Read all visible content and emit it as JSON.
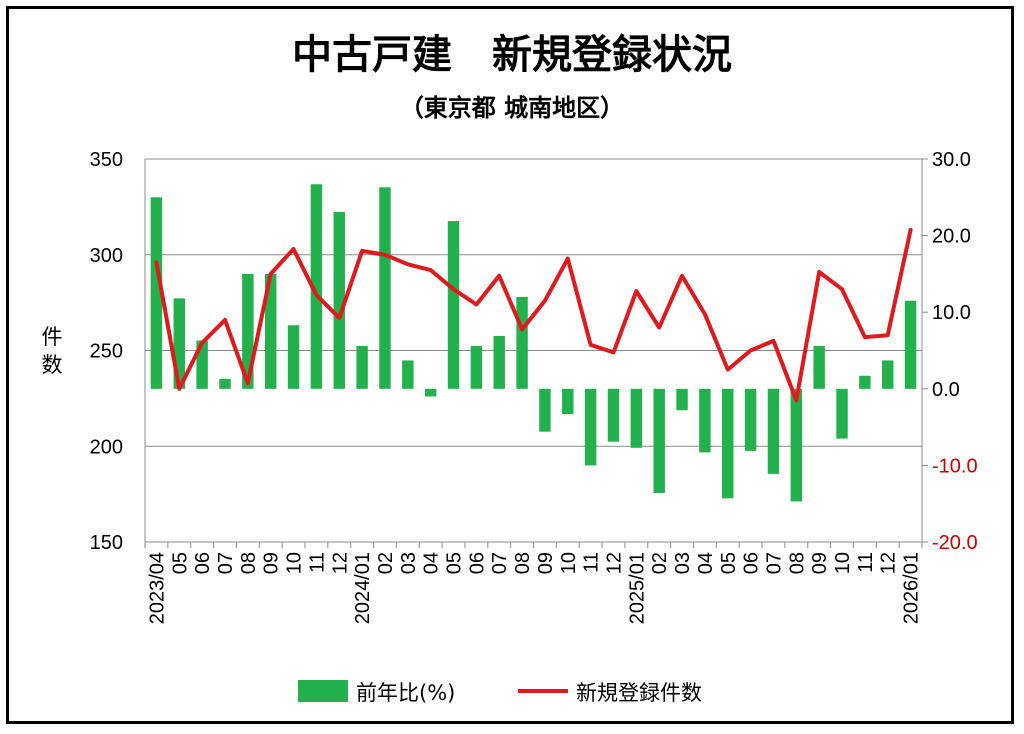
{
  "chart_data": {
    "type": "bar+line",
    "title": "中古戸建　新規登録状況",
    "subtitle": "（東京都 城南地区）",
    "ylabel": "件数",
    "ylabel_chars": [
      "件",
      "数"
    ],
    "categories": [
      "2023/04",
      "05",
      "06",
      "07",
      "08",
      "09",
      "10",
      "11",
      "12",
      "2024/01",
      "02",
      "03",
      "04",
      "05",
      "06",
      "07",
      "08",
      "09",
      "10",
      "11",
      "12",
      "2025/01",
      "02",
      "03",
      "04",
      "05",
      "06",
      "07",
      "08",
      "09",
      "10",
      "11",
      "12",
      "2026/01"
    ],
    "y_left": {
      "min": 150,
      "max": 350,
      "ticks": [
        "150",
        "200",
        "250",
        "300",
        "350"
      ]
    },
    "y_right": {
      "min": -20,
      "max": 30,
      "ticks": [
        "-20.0",
        "-10.0",
        "0.0",
        "10.0",
        "20.0",
        "30.0"
      ]
    },
    "series": [
      {
        "name": "前年比(%)",
        "axis": "right",
        "kind": "bar",
        "color": "#22b14c",
        "values": [
          25.0,
          11.8,
          6.3,
          1.3,
          15.0,
          15.0,
          8.3,
          26.7,
          23.1,
          5.6,
          26.3,
          3.7,
          -1.0,
          21.9,
          5.6,
          6.9,
          12.0,
          -5.6,
          -3.3,
          -10.0,
          -6.9,
          -7.7,
          -13.6,
          -2.8,
          -8.3,
          -14.3,
          -8.1,
          -11.1,
          -14.7,
          5.6,
          -6.5,
          1.7,
          3.7,
          11.5
        ]
      },
      {
        "name": "新規登録件数",
        "axis": "left",
        "kind": "line",
        "color": "#e0191c",
        "values": [
          296,
          230,
          254,
          266,
          233,
          290,
          303,
          279,
          267,
          302,
          300,
          295,
          292,
          282,
          274,
          289,
          261,
          276,
          298,
          253,
          249,
          281,
          262,
          289,
          269,
          240,
          250,
          255,
          224,
          291,
          282,
          257,
          258,
          313
        ]
      }
    ],
    "legend": {
      "placement": "bottom"
    }
  }
}
